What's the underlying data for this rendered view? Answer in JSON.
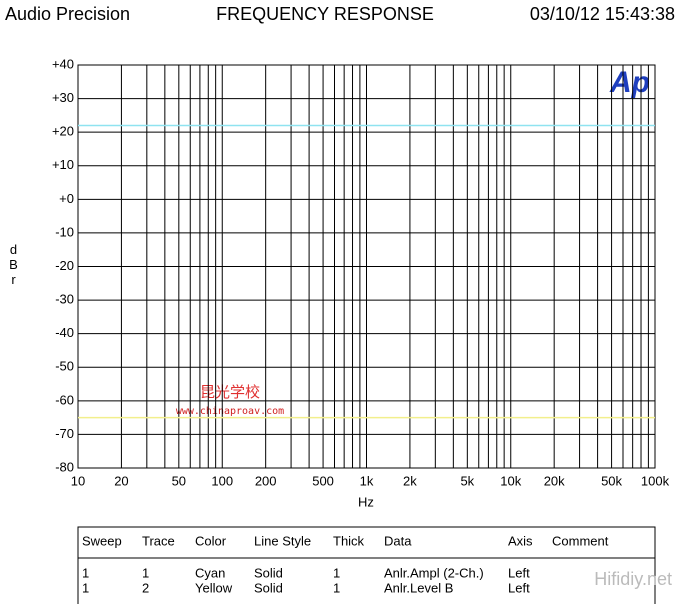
{
  "chart_data": {
    "type": "line",
    "brand": "Audio Precision",
    "title": "FREQUENCY RESPONSE",
    "timestamp": "03/10/12 15:43:38",
    "logo": "Ap",
    "ylabel": "dBr",
    "xlabel": "Hz",
    "xscale": "log",
    "grid": true,
    "xlim": [
      10,
      100000
    ],
    "ylim": [
      -80,
      40
    ],
    "xticks": [
      10,
      20,
      50,
      100,
      200,
      500,
      {
        "value": 1000,
        "label": "1k"
      },
      {
        "value": 2000,
        "label": "2k"
      },
      {
        "value": 5000,
        "label": "5k"
      },
      {
        "value": 10000,
        "label": "10k"
      },
      {
        "value": 20000,
        "label": "20k"
      },
      {
        "value": 50000,
        "label": "50k"
      },
      {
        "value": 100000,
        "label": "100k"
      }
    ],
    "xminorticks": [
      30,
      40,
      60,
      70,
      80,
      90,
      300,
      400,
      600,
      700,
      800,
      900,
      3000,
      4000,
      6000,
      7000,
      8000,
      9000,
      30000,
      40000,
      60000,
      70000,
      80000,
      90000
    ],
    "yticks": [
      {
        "value": 40,
        "label": "+40"
      },
      {
        "value": 30,
        "label": "+30"
      },
      {
        "value": 20,
        "label": "+20"
      },
      {
        "value": 10,
        "label": "+10"
      },
      {
        "value": 0,
        "label": "+0"
      },
      -10,
      -20,
      -30,
      -40,
      -50,
      -60,
      -70,
      -80
    ],
    "series": [
      {
        "color": "#8fe3f0",
        "x": [
          10,
          100000
        ],
        "values": [
          22,
          22
        ]
      },
      {
        "color": "#f2ef8c",
        "x": [
          10,
          100000
        ],
        "values": [
          -65,
          -65
        ]
      }
    ]
  },
  "watermarks": {
    "school": "昆光学校",
    "url": "www.chinaproav.com",
    "site": "Hifidiy.net"
  },
  "table": {
    "headers": [
      "Sweep",
      "Trace",
      "Color",
      "Line Style",
      "Thick",
      "Data",
      "Axis",
      "Comment"
    ],
    "rows": [
      [
        "1",
        "1",
        "Cyan",
        "Solid",
        "1",
        "Anlr.Ampl (2-Ch.)",
        "Left"
      ],
      [
        "1",
        "2",
        "Yellow",
        "Solid",
        "1",
        "Anlr.Level B",
        "Left"
      ]
    ]
  }
}
